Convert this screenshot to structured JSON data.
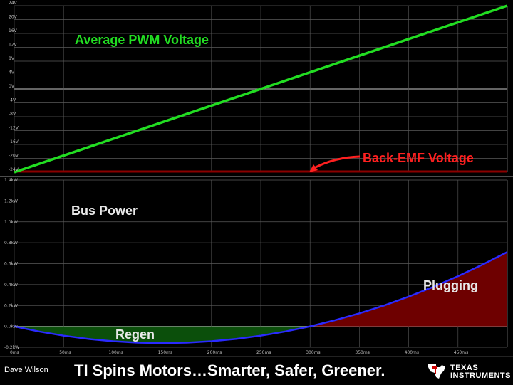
{
  "colors": {
    "background": "#000000",
    "grid": "#5a5a5a",
    "pwm_line": "#22dd22",
    "back_emf_line": "#8b0000",
    "bus_power_line": "#2a2aff",
    "plugging_fill": "#6e0000",
    "regen_fill": "#0b4f0b",
    "annotation_green": "#22dd22",
    "annotation_red": "#ff2020",
    "annotation_white": "#e8e8e8",
    "arrow_red": "#ff2020"
  },
  "chart_data": [
    {
      "type": "line",
      "yticks": [
        "24V",
        "20V",
        "16V",
        "12V",
        "8V",
        "4V",
        "0V",
        "-4V",
        "-8V",
        "-12V",
        "-16V",
        "-20V",
        "-24V"
      ],
      "ylim": [
        -24,
        24
      ],
      "xlim": [
        0,
        500
      ],
      "grid": true,
      "series": [
        {
          "name": "Average PWM Voltage",
          "x": [
            0,
            500
          ],
          "y": [
            -24,
            24
          ]
        },
        {
          "name": "Back-EMF Voltage",
          "x": [
            0,
            500
          ],
          "y": [
            -24,
            -24
          ]
        }
      ],
      "annotations": [
        {
          "text": "Average PWM Voltage",
          "color": "green"
        },
        {
          "text": "Back-EMF Voltage",
          "color": "red",
          "arrow": true
        }
      ]
    },
    {
      "type": "area",
      "yticks": [
        "1.4kW",
        "1.2kW",
        "1.0kW",
        "0.8kW",
        "0.6kW",
        "0.4kW",
        "0.2kW",
        "0.0kW",
        "-0.2kW"
      ],
      "ylim": [
        -0.2,
        1.4
      ],
      "xlim": [
        0,
        500
      ],
      "xticks": [
        "0ms",
        "50ms",
        "100ms",
        "150ms",
        "200ms",
        "250ms",
        "300ms",
        "350ms",
        "400ms",
        "450ms"
      ],
      "xtick_values": [
        0,
        50,
        100,
        150,
        200,
        250,
        300,
        350,
        400,
        450
      ],
      "grid": true,
      "series": [
        {
          "name": "Bus Power",
          "x": [
            0,
            25,
            50,
            75,
            100,
            125,
            150,
            175,
            200,
            225,
            250,
            275,
            300,
            325,
            350,
            375,
            400,
            425,
            450,
            475,
            500
          ],
          "y": [
            0.0,
            -0.049,
            -0.089,
            -0.12,
            -0.142,
            -0.156,
            -0.16,
            -0.156,
            -0.142,
            -0.12,
            -0.089,
            -0.049,
            0.0,
            0.058,
            0.125,
            0.2,
            0.285,
            0.378,
            0.48,
            0.591,
            0.711
          ]
        }
      ],
      "annotations": [
        {
          "text": "Bus Power",
          "color": "white"
        },
        {
          "text": "Plugging",
          "color": "white"
        },
        {
          "text": "Regen",
          "color": "white"
        }
      ]
    }
  ],
  "footer": {
    "author": "Dave Wilson",
    "tagline": "TI Spins Motors…Smarter, Safer, Greener.",
    "logo_line1": "TEXAS",
    "logo_line2": "INSTRUMENTS"
  }
}
